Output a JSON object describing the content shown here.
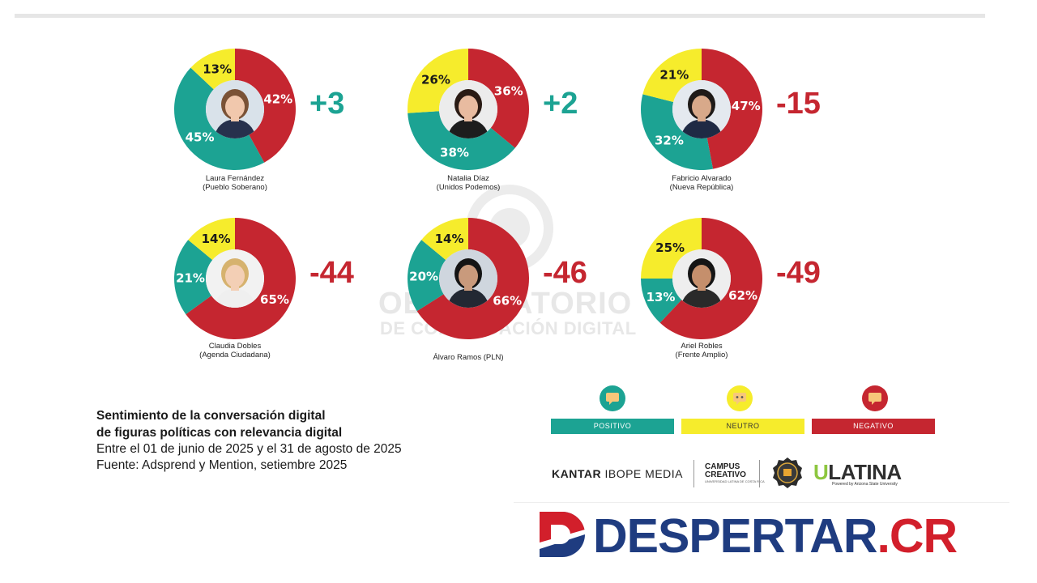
{
  "colors": {
    "positive": "#1ca393",
    "neutral": "#f6ec2c",
    "negative": "#c52630",
    "diff_positive": "#1ca393",
    "diff_negative": "#c52630"
  },
  "watermark": {
    "line1": "OBSERVATORIO",
    "line2": "DE COMUNICACIÓN DIGITAL"
  },
  "chart_data": {
    "type": "pie",
    "series_names": [
      "Positivo",
      "Neutro",
      "Negativo"
    ],
    "items": [
      {
        "name": "Laura Fernández",
        "party": "(Pueblo Soberano)",
        "positive": 45,
        "neutral": 13,
        "negative": 42,
        "diff": "+3",
        "positive_label": "45%",
        "neutral_label": "13%",
        "negative_label": "42%"
      },
      {
        "name": "Natalia Díaz",
        "party": "(Unidos Podemos)",
        "positive": 38,
        "neutral": 26,
        "negative": 36,
        "diff": "+2",
        "positive_label": "38%",
        "neutral_label": "26%",
        "negative_label": "36%"
      },
      {
        "name": "Fabricio Alvarado",
        "party": "(Nueva República)",
        "positive": 32,
        "neutral": 21,
        "negative": 47,
        "diff": "-15",
        "positive_label": "32%",
        "neutral_label": "21%",
        "negative_label": "47%"
      },
      {
        "name": "Claudia Dobles",
        "party": "(Agenda Ciudadana)",
        "positive": 21,
        "neutral": 14,
        "negative": 65,
        "diff": "-44",
        "positive_label": "21%",
        "neutral_label": "14%",
        "negative_label": "65%"
      },
      {
        "name": "Álvaro Ramos (PLN)",
        "party": "",
        "positive": 20,
        "neutral": 14,
        "negative": 66,
        "diff": "-46",
        "positive_label": "20%",
        "neutral_label": "14%",
        "negative_label": "66%"
      },
      {
        "name": "Ariel Robles",
        "party": "(Frente Amplio)",
        "positive": 13,
        "neutral": 25,
        "negative": 62,
        "diff": "-49",
        "positive_label": "13%",
        "neutral_label": "25%",
        "negative_label": "62%"
      }
    ]
  },
  "caption": {
    "title_line1": "Sentimiento de la conversación digital",
    "title_line2": "de figuras políticas con relevancia digital",
    "period": "Entre el 01 de junio de 2025 y el 31 de agosto de 2025",
    "source": "Fuente: Adsprend y Mention, setiembre 2025"
  },
  "legend": {
    "positive": "POSITIVO",
    "neutral": "NEUTRO",
    "negative": "NEGATIVO"
  },
  "sponsors": {
    "kantar_bold": "KANTAR",
    "kantar_rest": " IBOPE MEDIA",
    "campus_line1": "CAMPUS",
    "campus_line2": "CREATIVO",
    "campus_sub": "UNIVERSIDAD LATINA DE COSTA RICA",
    "ulatina_u": "U",
    "ulatina_rest": "LATINA",
    "ulatina_sub": "Powered by Arizona State University"
  },
  "brand": {
    "name": "DESPERTAR",
    "suffix": ".CR"
  }
}
